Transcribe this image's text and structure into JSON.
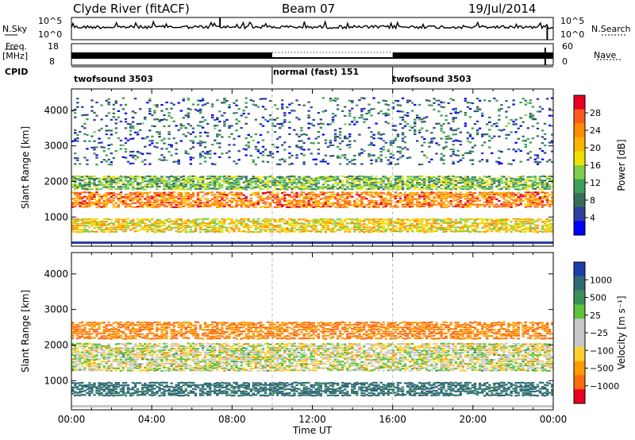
{
  "header": {
    "station": "Clyde River (fitACF)",
    "beam": "Beam 07",
    "date": "19/Jul/2014"
  },
  "status": {
    "nsky_label": "N.Sky",
    "nsky_top": "10^5",
    "nsky_bottom": "10^0",
    "nsearch_label": "N.Search",
    "nsearch_top": "10^5",
    "nsearch_bottom": "10^0",
    "freq_label": "Freq.",
    "freq_unit": "[MHz]",
    "freq_top": "18",
    "freq_bottom": "8",
    "nave_label": "Nave",
    "nave_top": "60",
    "nave_bottom": "0",
    "cpid_label": "CPID",
    "cpid_segments": [
      {
        "label": "twofsound 3503",
        "start_h": 0,
        "end_h": 10
      },
      {
        "label": "normal (fast) 151",
        "start_h": 10,
        "end_h": 16
      },
      {
        "label": "twofsound 3503",
        "start_h": 16,
        "end_h": 24
      }
    ]
  },
  "chart_data": [
    {
      "type": "heatmap",
      "title": "",
      "xlabel": "",
      "ylabel": "Slant Range [km]",
      "xlim_hours": [
        0,
        24
      ],
      "ylim_km": [
        180,
        4600
      ],
      "yticks": [
        1000,
        2000,
        3000,
        4000
      ],
      "colorbar": {
        "label": "Power [dB]",
        "ticks": [
          "28",
          "24",
          "20",
          "16",
          "12",
          "8",
          "4"
        ],
        "colors": [
          "#e8001e",
          "#ff5a1e",
          "#ff8c00",
          "#ffb400",
          "#f0e000",
          "#7fd04a",
          "#3d9e57",
          "#356f5a",
          "#2d3f9e",
          "#0000ff"
        ]
      },
      "bands": [
        {
          "km_min": 1300,
          "km_max": 1750,
          "level": "high",
          "value_db": 24
        },
        {
          "km_min": 1800,
          "km_max": 2200,
          "level": "medium",
          "value_db": 12
        },
        {
          "km_min": 600,
          "km_max": 1000,
          "level": "medium-high",
          "value_db": 18
        },
        {
          "km_min": 2500,
          "km_max": 4400,
          "level": "low",
          "value_db": 6
        }
      ]
    },
    {
      "type": "heatmap",
      "title": "",
      "xlabel": "Time UT",
      "ylabel": "Slant Range [km]",
      "xlim_hours": [
        0,
        24
      ],
      "ylim_km": [
        180,
        4600
      ],
      "xticks": [
        "00:00",
        "04:00",
        "08:00",
        "12:00",
        "16:00",
        "20:00",
        "00:00"
      ],
      "yticks": [
        1000,
        2000,
        3000,
        4000
      ],
      "colorbar": {
        "label": "Velocity [m s⁻¹]",
        "ticks": [
          "1000",
          "500",
          "25",
          "−25",
          "−100",
          "−500",
          "−1000"
        ],
        "colors": [
          "#1a3faa",
          "#2f6b73",
          "#3a8f5a",
          "#5ec23a",
          "#c8c8c8",
          "#c8c8c8",
          "#ffd030",
          "#ff9a00",
          "#ff6a10",
          "#e8001e"
        ]
      },
      "bands": [
        {
          "km_min": 1300,
          "km_max": 2100,
          "level": "near-zero",
          "value_ms": 0
        },
        {
          "km_min": 600,
          "km_max": 1000,
          "level": "positive",
          "value_ms": 400
        },
        {
          "km_min": 2200,
          "km_max": 2700,
          "level": "negative",
          "value_ms": -300
        }
      ]
    }
  ]
}
